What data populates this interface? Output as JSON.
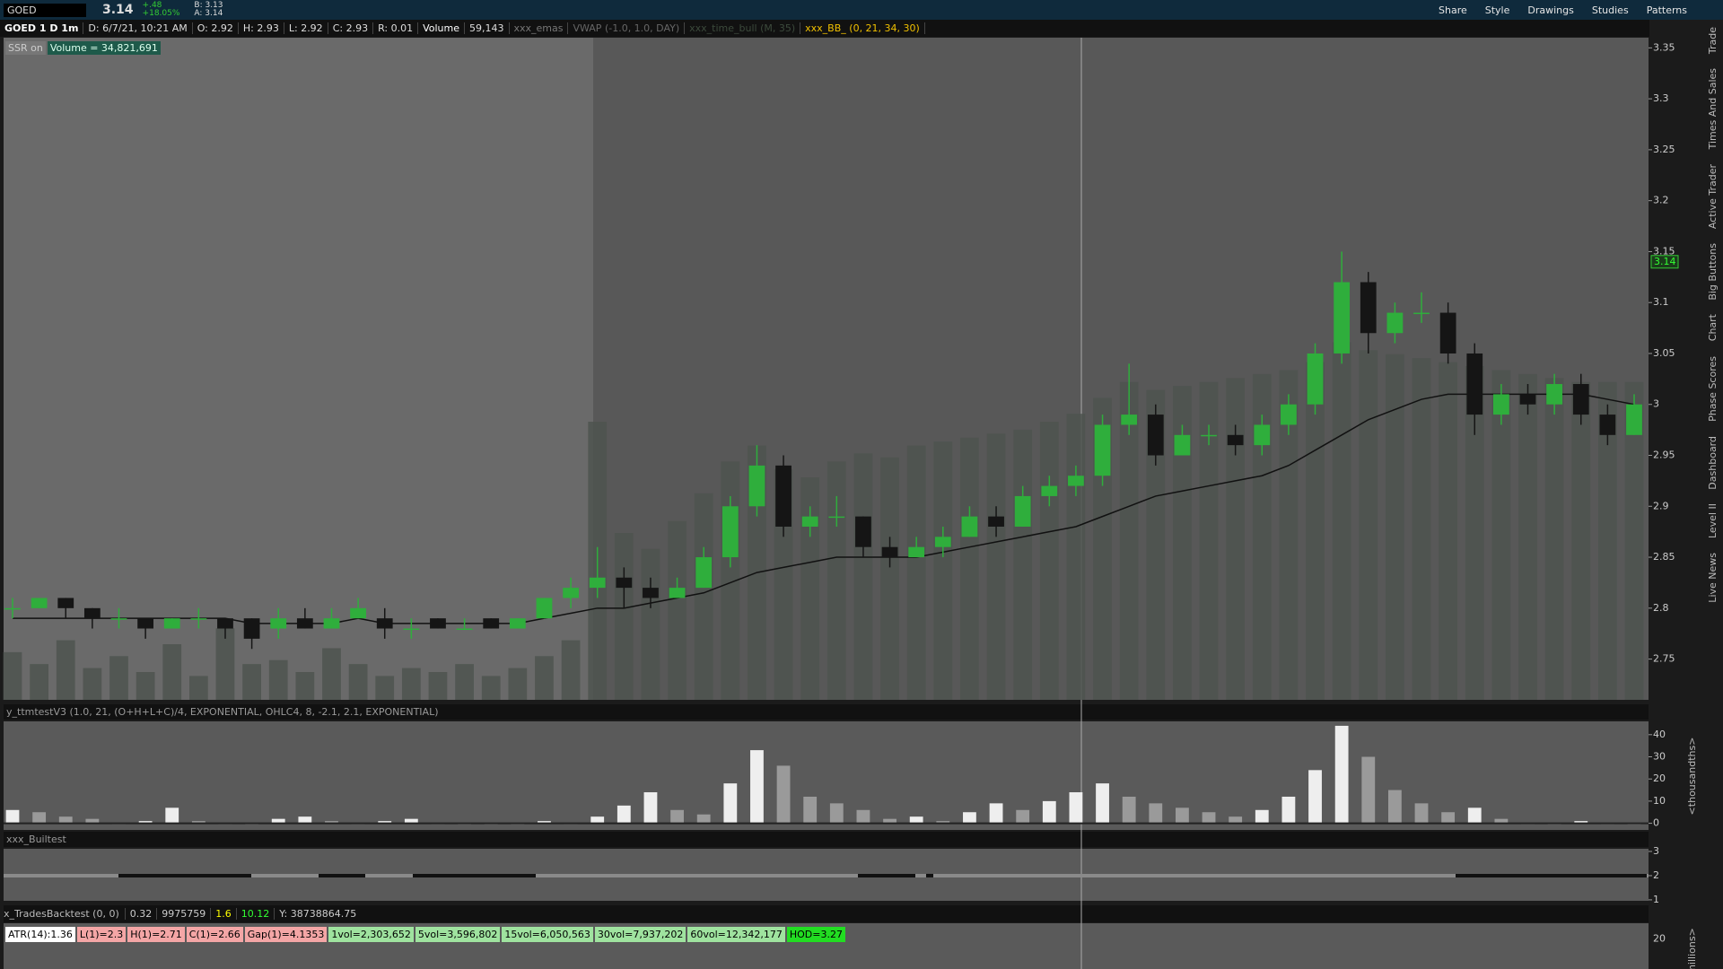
{
  "toolbar": {
    "symbol": "GOED",
    "last": "3.14",
    "change": "+.48",
    "change_pct": "+18.05%",
    "bid": "B: 3.13",
    "ask": "A: 3.14",
    "buttons": [
      "Share",
      "Style",
      "Drawings",
      "Studies",
      "Patterns"
    ]
  },
  "info_bar": {
    "chart_label": "GOED 1 D 1m",
    "fields": [
      "D: 6/7/21, 10:21 AM",
      "O: 2.92",
      "H: 2.93",
      "L: 2.92",
      "C: 2.93",
      "R: 0.01"
    ],
    "volume_label": "Volume",
    "volume_value": "59,143",
    "studies": [
      "xxx_emas",
      "VWAP (-1.0, 1.0, DAY)",
      "xxx_time_bull (M, 35)",
      "xxx_BB_ (0, 21, 34, 30)"
    ]
  },
  "badges": {
    "ssr": "SSR on",
    "volume": "Volume = 34,821,691"
  },
  "price_chart": {
    "ylim": [
      2.71,
      3.36
    ],
    "yticks": [
      2.75,
      2.8,
      2.85,
      2.9,
      2.95,
      3,
      3.05,
      3.1,
      3.15,
      3.2,
      3.25,
      3.3,
      3.35
    ],
    "last_price": 3.14,
    "candles": [
      [
        2.8,
        2.81,
        2.79,
        2.8
      ],
      [
        2.8,
        2.81,
        2.8,
        2.81
      ],
      [
        2.81,
        2.81,
        2.79,
        2.8
      ],
      [
        2.8,
        2.8,
        2.78,
        2.79
      ],
      [
        2.79,
        2.8,
        2.78,
        2.79
      ],
      [
        2.79,
        2.79,
        2.77,
        2.78
      ],
      [
        2.78,
        2.79,
        2.78,
        2.79
      ],
      [
        2.79,
        2.8,
        2.78,
        2.79
      ],
      [
        2.79,
        2.79,
        2.77,
        2.78
      ],
      [
        2.79,
        2.79,
        2.76,
        2.77
      ],
      [
        2.78,
        2.8,
        2.77,
        2.79
      ],
      [
        2.79,
        2.8,
        2.78,
        2.78
      ],
      [
        2.78,
        2.8,
        2.78,
        2.79
      ],
      [
        2.79,
        2.81,
        2.79,
        2.8
      ],
      [
        2.79,
        2.8,
        2.77,
        2.78
      ],
      [
        2.78,
        2.79,
        2.77,
        2.78
      ],
      [
        2.79,
        2.79,
        2.78,
        2.78
      ],
      [
        2.78,
        2.79,
        2.78,
        2.78
      ],
      [
        2.79,
        2.79,
        2.78,
        2.78
      ],
      [
        2.78,
        2.79,
        2.78,
        2.79
      ],
      [
        2.79,
        2.81,
        2.79,
        2.81
      ],
      [
        2.81,
        2.83,
        2.8,
        2.82
      ],
      [
        2.82,
        2.86,
        2.81,
        2.83
      ],
      [
        2.83,
        2.84,
        2.8,
        2.82
      ],
      [
        2.82,
        2.83,
        2.8,
        2.81
      ],
      [
        2.81,
        2.83,
        2.81,
        2.82
      ],
      [
        2.82,
        2.86,
        2.82,
        2.85
      ],
      [
        2.85,
        2.91,
        2.84,
        2.9
      ],
      [
        2.9,
        2.96,
        2.89,
        2.94
      ],
      [
        2.94,
        2.95,
        2.87,
        2.88
      ],
      [
        2.88,
        2.9,
        2.87,
        2.89
      ],
      [
        2.89,
        2.91,
        2.88,
        2.89
      ],
      [
        2.89,
        2.89,
        2.85,
        2.86
      ],
      [
        2.86,
        2.87,
        2.84,
        2.85
      ],
      [
        2.85,
        2.87,
        2.85,
        2.86
      ],
      [
        2.86,
        2.88,
        2.85,
        2.87
      ],
      [
        2.87,
        2.9,
        2.87,
        2.89
      ],
      [
        2.89,
        2.9,
        2.87,
        2.88
      ],
      [
        2.88,
        2.92,
        2.88,
        2.91
      ],
      [
        2.91,
        2.93,
        2.9,
        2.92
      ],
      [
        2.92,
        2.94,
        2.91,
        2.93
      ],
      [
        2.93,
        2.99,
        2.92,
        2.98
      ],
      [
        2.98,
        3.04,
        2.97,
        2.99
      ],
      [
        2.99,
        3.0,
        2.94,
        2.95
      ],
      [
        2.95,
        2.98,
        2.95,
        2.97
      ],
      [
        2.97,
        2.98,
        2.96,
        2.97
      ],
      [
        2.97,
        2.98,
        2.95,
        2.96
      ],
      [
        2.96,
        2.99,
        2.95,
        2.98
      ],
      [
        2.98,
        3.01,
        2.97,
        3.0
      ],
      [
        3.0,
        3.06,
        2.99,
        3.05
      ],
      [
        3.05,
        3.15,
        3.04,
        3.12
      ],
      [
        3.12,
        3.13,
        3.05,
        3.07
      ],
      [
        3.07,
        3.1,
        3.06,
        3.09
      ],
      [
        3.09,
        3.11,
        3.08,
        3.09
      ],
      [
        3.09,
        3.1,
        3.04,
        3.05
      ],
      [
        3.05,
        3.06,
        2.97,
        2.99
      ],
      [
        2.99,
        3.02,
        2.98,
        3.01
      ],
      [
        3.01,
        3.02,
        2.99,
        3.0
      ],
      [
        3.0,
        3.03,
        2.99,
        3.02
      ],
      [
        3.02,
        3.03,
        2.98,
        2.99
      ],
      [
        2.99,
        3.0,
        2.96,
        2.97
      ],
      [
        2.97,
        3.01,
        2.97,
        3.0
      ]
    ],
    "ema": [
      2.79,
      2.79,
      2.79,
      2.79,
      2.79,
      2.79,
      2.79,
      2.79,
      2.79,
      2.785,
      2.785,
      2.785,
      2.785,
      2.79,
      2.785,
      2.785,
      2.785,
      2.785,
      2.785,
      2.785,
      2.79,
      2.795,
      2.8,
      2.8,
      2.805,
      2.81,
      2.815,
      2.825,
      2.835,
      2.84,
      2.845,
      2.85,
      2.85,
      2.85,
      2.85,
      2.855,
      2.86,
      2.865,
      2.87,
      2.875,
      2.88,
      2.89,
      2.9,
      2.91,
      2.915,
      2.92,
      2.925,
      2.93,
      2.94,
      2.955,
      2.97,
      2.985,
      2.995,
      3.005,
      3.01,
      3.01,
      3.01,
      3.01,
      3.01,
      3.01,
      3.005,
      3.0
    ],
    "volume_lim": [
      0,
      1000
    ],
    "volume": [
      120,
      90,
      150,
      80,
      110,
      70,
      140,
      60,
      180,
      90,
      100,
      70,
      130,
      90,
      60,
      80,
      70,
      90,
      60,
      80,
      110,
      150,
      700,
      420,
      380,
      450,
      520,
      600,
      640,
      580,
      560,
      600,
      620,
      610,
      640,
      650,
      660,
      670,
      680,
      700,
      720,
      760,
      800,
      780,
      790,
      800,
      810,
      820,
      830,
      850,
      900,
      880,
      870,
      860,
      850,
      840,
      830,
      820,
      810,
      800,
      800,
      800
    ]
  },
  "oscillator": {
    "header": "y_ttmtestV3 (1.0, 21, (O+H+L+C)/4, EXPONENTIAL, OHLC4, 8, -2.1, 2.1, EXPONENTIAL)",
    "ylim": [
      -3,
      46
    ],
    "yticks": [
      0,
      10,
      20,
      30,
      40
    ],
    "axis_label": "<thousandths>",
    "values": [
      6,
      5,
      3,
      2,
      0,
      1,
      7,
      1,
      0,
      0,
      2,
      3,
      1,
      0,
      1,
      2,
      0,
      0,
      0,
      0,
      1,
      0,
      3,
      8,
      14,
      6,
      4,
      18,
      33,
      26,
      12,
      9,
      6,
      2,
      3,
      1,
      5,
      9,
      6,
      10,
      14,
      18,
      12,
      9,
      7,
      5,
      3,
      6,
      12,
      24,
      44,
      30,
      15,
      9,
      5,
      7,
      2,
      0,
      0,
      1,
      0,
      0
    ]
  },
  "builtest": {
    "header": "xxx_Builtest",
    "ylim": [
      0.96,
      3.11
    ],
    "yticks": [
      1,
      2,
      3
    ]
  },
  "backtest": {
    "header": "x_TradesBacktest (0, 0)",
    "values": [
      "0.32",
      "9975759",
      "1.6",
      "10.12",
      "Y: 38738864.75"
    ],
    "stats": [
      "ATR(14):1.36",
      "L(1)=2.3",
      "H(1)=2.71",
      "C(1)=2.66",
      "Gap(1)=4.1353",
      "1vol=2,303,652",
      "5vol=3,596,802",
      "15vol=6,050,563",
      "30vol=7,937,202",
      "60vol=12,342,177",
      "HOD=3.27"
    ],
    "ylim": [
      0,
      30
    ],
    "yticks": [
      20
    ],
    "axis_label": "millions>"
  },
  "side_tabs": [
    "Trade",
    "Times And Sales",
    "Active Trader",
    "Big Buttons",
    "Chart",
    "Phase Scores",
    "Dashboard",
    "Level II",
    "Live News"
  ]
}
